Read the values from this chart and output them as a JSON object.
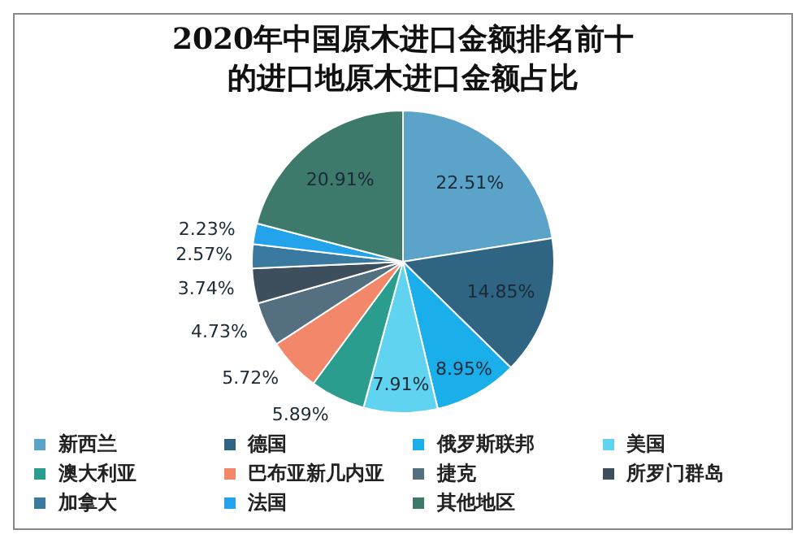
{
  "chart_data": {
    "type": "pie",
    "title": "2020年中国原木进口金额排名前十的进口地原木进口金额占比",
    "categories": [
      "新西兰",
      "德国",
      "俄罗斯联邦",
      "美国",
      "澳大利亚",
      "巴布亚新几内亚",
      "捷克",
      "所罗门群岛",
      "加拿大",
      "法国",
      "其他地区"
    ],
    "values": [
      22.51,
      14.85,
      8.95,
      7.91,
      5.89,
      5.72,
      4.73,
      3.74,
      2.57,
      2.23,
      20.91
    ],
    "value_labels": [
      "22.51%",
      "14.85%",
      "8.95%",
      "7.91%",
      "5.89%",
      "5.72%",
      "4.73%",
      "3.74%",
      "2.57%",
      "2.23%",
      "20.91%"
    ],
    "colors": [
      "#5ba3c9",
      "#2f6483",
      "#1aaeea",
      "#5fd3ef",
      "#2a9d8f",
      "#f2876a",
      "#546f7f",
      "#3d4e5c",
      "#3a7aa0",
      "#22a3ec",
      "#3e7a6c"
    ],
    "legend": "bottom"
  }
}
